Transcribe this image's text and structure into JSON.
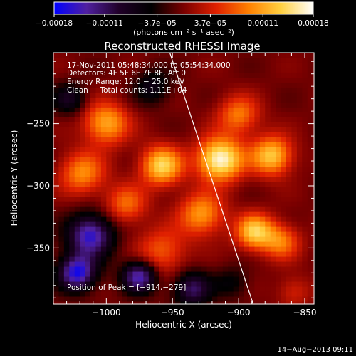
{
  "chart_data": {
    "type": "heatmap",
    "title": "Reconstructed RHESSI Image",
    "xlabel": "Heliocentric X (arcsec)",
    "ylabel": "Heliocentric Y (arcsec)",
    "xlim": [
      -1040,
      -843
    ],
    "ylim": [
      -395,
      -193
    ],
    "xticks": [
      -1000,
      -950,
      -900,
      -850
    ],
    "xtick_labels": [
      "−1000",
      "−950",
      "−900",
      "−850"
    ],
    "yticks": [
      -250,
      -300,
      -350
    ],
    "ytick_labels": [
      "−250",
      "−300",
      "−350"
    ],
    "colorbar": {
      "min": -0.00018,
      "max": 0.00018,
      "ticks": [
        -0.00018,
        -0.00011,
        -3.7e-05,
        3.7e-05,
        0.00011,
        0.00018
      ],
      "tick_labels": [
        "−0.00018",
        "−0.00011",
        "−3.7e−05",
        "3.7e−05",
        "0.00011",
        "0.00018"
      ],
      "units_label": "(photons cm⁻² s⁻¹ asec⁻²)",
      "colors": [
        "#0000ff",
        "#5020a0",
        "#200028",
        "#000000",
        "#7a0000",
        "#e02000",
        "#ff8000",
        "#ffd040",
        "#ffffff"
      ]
    },
    "annotations": {
      "time_range": "17-Nov-2011 05:48:34.000 to 05:54:34.000",
      "detectors": "Detectors: 4F 5F 6F 7F 8F, Att 0",
      "energy_range": "Energy Range: 12.0 − 25.0 keV",
      "clean_counts": "Clean     Total counts: 1.11E+04",
      "peak": "Position of Peak = [−914,−279]"
    },
    "peak_position": [
      -914,
      -279
    ],
    "limb_line": [
      [
        -952,
        -193
      ],
      [
        -889,
        -395
      ]
    ],
    "sources": [
      {
        "x": -914,
        "y": -279,
        "amp": 1.0,
        "sigma": 12
      },
      {
        "x": -958,
        "y": -284,
        "amp": 0.8,
        "sigma": 11
      },
      {
        "x": -1000,
        "y": -250,
        "amp": 0.65,
        "sigma": 12
      },
      {
        "x": -1018,
        "y": -290,
        "amp": 0.55,
        "sigma": 12
      },
      {
        "x": -875,
        "y": -276,
        "amp": 0.75,
        "sigma": 11
      },
      {
        "x": -888,
        "y": -337,
        "amp": 0.75,
        "sigma": 10
      },
      {
        "x": -868,
        "y": -345,
        "amp": 0.5,
        "sigma": 10
      },
      {
        "x": -958,
        "y": -353,
        "amp": 0.42,
        "sigma": 13
      },
      {
        "x": -928,
        "y": -323,
        "amp": 0.6,
        "sigma": 12
      },
      {
        "x": -900,
        "y": -243,
        "amp": 0.5,
        "sigma": 11
      },
      {
        "x": -985,
        "y": -315,
        "amp": 0.45,
        "sigma": 11
      },
      {
        "x": -1012,
        "y": -340,
        "amp": -0.85,
        "sigma": 12
      },
      {
        "x": -1022,
        "y": -370,
        "amp": -0.9,
        "sigma": 10
      },
      {
        "x": -975,
        "y": -373,
        "amp": -0.8,
        "sigma": 9
      },
      {
        "x": -935,
        "y": -383,
        "amp": -0.6,
        "sigma": 10
      },
      {
        "x": -1028,
        "y": -230,
        "amp": -0.4,
        "sigma": 9
      },
      {
        "x": -965,
        "y": -220,
        "amp": -0.35,
        "sigma": 10
      },
      {
        "x": -905,
        "y": -378,
        "amp": -0.25,
        "sigma": 9
      },
      {
        "x": -858,
        "y": -385,
        "amp": 0.25,
        "sigma": 9
      }
    ]
  },
  "footer": {
    "timestamp": "14−Aug−2013 09:11"
  }
}
